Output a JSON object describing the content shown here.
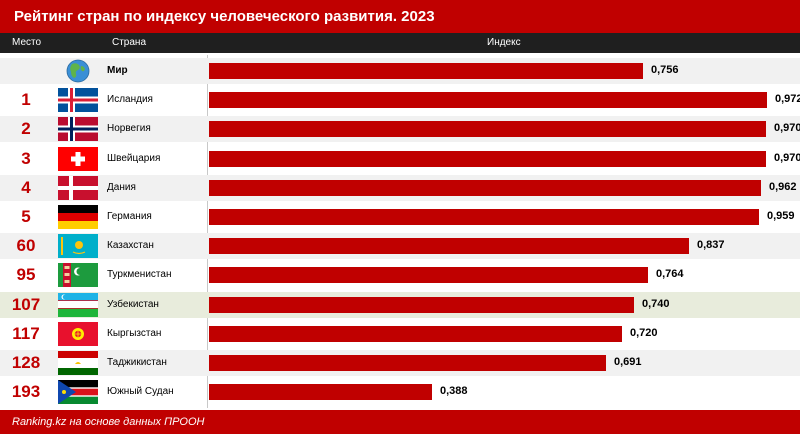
{
  "title": "Рейтинг стран по индексу человеческого развития. 2023",
  "columns": {
    "place": "Место",
    "country": "Страна",
    "index": "Индекс"
  },
  "footer": "Ranking.kz на основе данных ПРООН",
  "colors": {
    "accent": "#c00000",
    "bar": "#c00000",
    "rank": "#c00000",
    "header_bg": "#1f1f1f",
    "row_even": "#f1f1f1",
    "row_highlight": "#e8ecdc"
  },
  "rows": [
    {
      "rank": "",
      "country": "Мир",
      "value_label": "0,756",
      "flag": "globe-icon",
      "bold": true
    },
    {
      "rank": "1",
      "country": "Исландия",
      "value_label": "0,972",
      "flag": "iceland-flag-icon"
    },
    {
      "rank": "2",
      "country": "Норвегия",
      "value_label": "0,970",
      "flag": "norway-flag-icon"
    },
    {
      "rank": "3",
      "country": "Швейцария",
      "value_label": "0,970",
      "flag": "switzerland-flag-icon"
    },
    {
      "rank": "4",
      "country": "Дания",
      "value_label": "0,962",
      "flag": "denmark-flag-icon"
    },
    {
      "rank": "5",
      "country": "Германия",
      "value_label": "0,959",
      "flag": "germany-flag-icon"
    },
    {
      "rank": "60",
      "country": "Казахстан",
      "value_label": "0,837",
      "flag": "kazakhstan-flag-icon"
    },
    {
      "rank": "95",
      "country": "Туркменистан",
      "value_label": "0,764",
      "flag": "turkmenistan-flag-icon"
    },
    {
      "rank": "107",
      "country": "Узбекистан",
      "value_label": "0,740",
      "flag": "uzbekistan-flag-icon",
      "highlight": true
    },
    {
      "rank": "117",
      "country": "Кыргызстан",
      "value_label": "0,720",
      "flag": "kyrgyzstan-flag-icon"
    },
    {
      "rank": "128",
      "country": "Таджикистан",
      "value_label": "0,691",
      "flag": "tajikistan-flag-icon"
    },
    {
      "rank": "193",
      "country": "Южный Судан",
      "value_label": "0,388",
      "flag": "south-sudan-flag-icon"
    }
  ],
  "chart_data": {
    "type": "bar",
    "orientation": "horizontal",
    "title": "Рейтинг стран по индексу человеческого развития. 2023",
    "categories": [
      "Мир",
      "Исландия",
      "Норвегия",
      "Швейцария",
      "Дания",
      "Германия",
      "Казахстан",
      "Туркменистан",
      "Узбекистан",
      "Кыргызстан",
      "Таджикистан",
      "Южный Судан"
    ],
    "values": [
      0.756,
      0.972,
      0.97,
      0.97,
      0.962,
      0.959,
      0.837,
      0.764,
      0.74,
      0.72,
      0.691,
      0.388
    ],
    "xlim": [
      0,
      1
    ],
    "grid": false,
    "legend": "none"
  }
}
